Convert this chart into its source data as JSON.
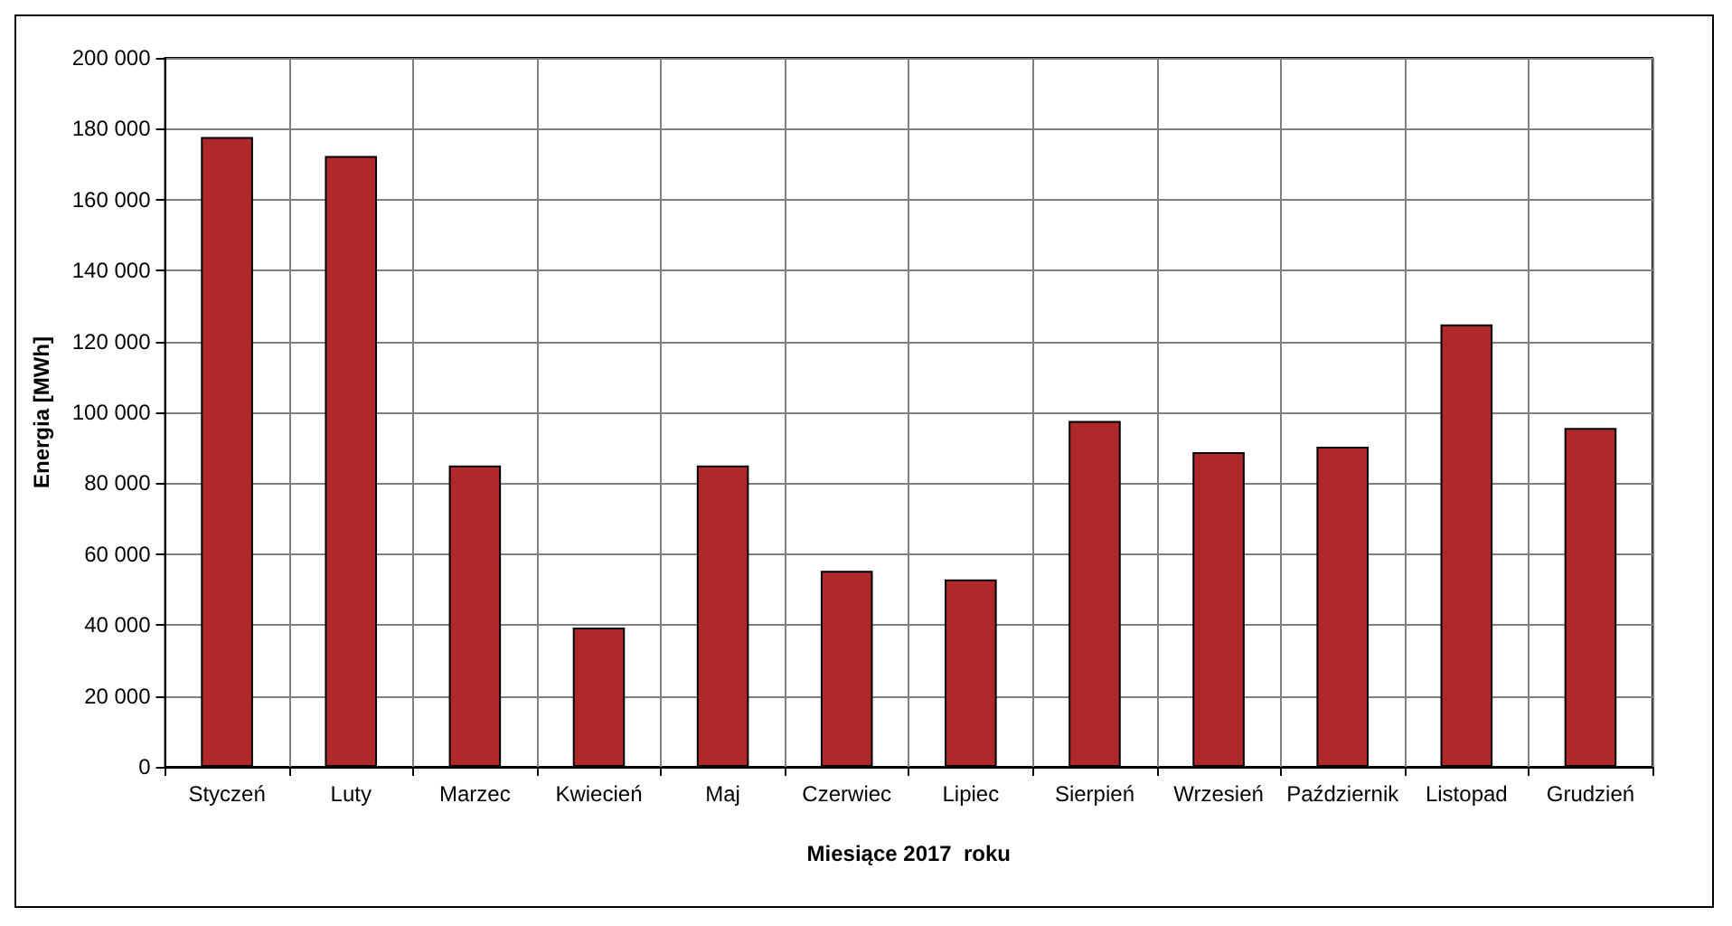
{
  "chart_data": {
    "type": "bar",
    "xlabel": "Miesiące 2017  roku",
    "ylabel": "Energia [MWh]",
    "categories": [
      "Styczeń",
      "Luty",
      "Marzec",
      "Kwiecień",
      "Maj",
      "Czerwiec",
      "Lipiec",
      "Sierpień",
      "Wrzesień",
      "Październik",
      "Listopad",
      "Grudzień"
    ],
    "values": [
      177700,
      172300,
      85000,
      39300,
      85000,
      55300,
      52900,
      97600,
      88800,
      90300,
      124800,
      95600
    ],
    "color": "#b0292a",
    "ylim": [
      0,
      200000
    ],
    "yticks": [
      0,
      {
        "value": 20000,
        "label": "20 000"
      },
      {
        "value": 40000,
        "label": "40 000"
      },
      {
        "value": 60000,
        "label": "60 000"
      },
      {
        "value": 80000,
        "label": "80 000"
      },
      {
        "value": 100000,
        "label": "100 000"
      },
      {
        "value": 120000,
        "label": "120 000"
      },
      {
        "value": 140000,
        "label": "140 000"
      },
      {
        "value": 160000,
        "label": "160 000"
      },
      {
        "value": 180000,
        "label": "180 000"
      },
      {
        "value": 200000,
        "label": "200 000"
      }
    ],
    "grid": true
  }
}
